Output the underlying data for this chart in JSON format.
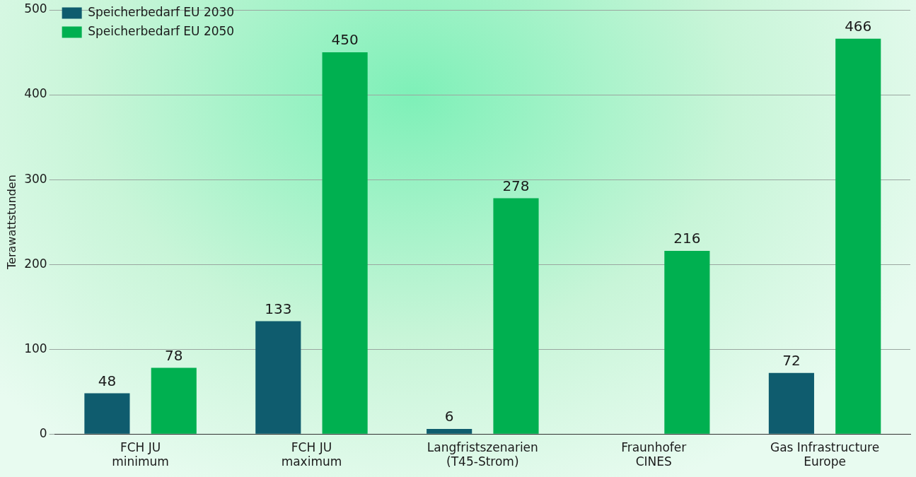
{
  "chart_data": {
    "type": "bar",
    "ylabel": "Terawattstunden",
    "categories": [
      "FCH JU\nminimum",
      "FCH JU\nmaximum",
      "Langfristszenarien\n(T45-Strom)",
      "Fraunhofer\nCINES",
      "Gas Infrastructure\nEurope"
    ],
    "series": [
      {
        "name": "Speicherbedarf EU 2030",
        "color": "#0f5c6e",
        "values": [
          48,
          133,
          6,
          null,
          72
        ]
      },
      {
        "name": "Speicherbedarf EU 2050",
        "color": "#00b050",
        "values": [
          78,
          450,
          278,
          216,
          466
        ]
      }
    ],
    "ylim": [
      0,
      500
    ],
    "yticks": [
      0,
      100,
      200,
      300,
      400,
      500
    ],
    "grid": "y",
    "legend": "top left",
    "data_labels": true
  }
}
